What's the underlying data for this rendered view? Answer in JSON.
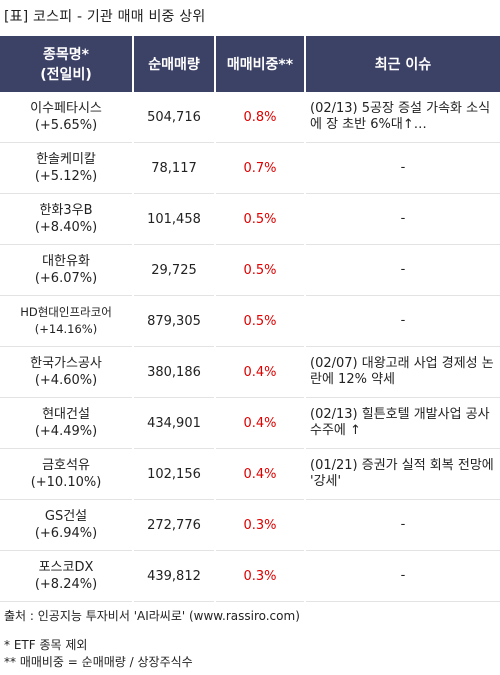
{
  "title": "[표] 코스피 - 기관 매매 비중 상위",
  "columns": {
    "name_line1": "종목명*",
    "name_line2": "(전일비)",
    "volume": "순매매량",
    "ratio": "매매비중**",
    "issue": "최근 이슈"
  },
  "rows": [
    {
      "name": "이수페타시스",
      "change": "(+5.65%)",
      "volume": "504,716",
      "ratio": "0.8%",
      "issue": "(02/13) 5공장 증설 가속화 소식에 장 초반 6%대↑…"
    },
    {
      "name": "한솔케미칼",
      "change": "(+5.12%)",
      "volume": "78,117",
      "ratio": "0.7%",
      "issue": "-"
    },
    {
      "name": "한화3우B",
      "change": "(+8.40%)",
      "volume": "101,458",
      "ratio": "0.5%",
      "issue": "-"
    },
    {
      "name": "대한유화",
      "change": "(+6.07%)",
      "volume": "29,725",
      "ratio": "0.5%",
      "issue": "-"
    },
    {
      "name": "HD현대인프라코어",
      "change": "(+14.16%)",
      "volume": "879,305",
      "ratio": "0.5%",
      "issue": "-"
    },
    {
      "name": "한국가스공사",
      "change": "(+4.60%)",
      "volume": "380,186",
      "ratio": "0.4%",
      "issue": "(02/07) 대왕고래 사업 경제성 논란에 12% 약세"
    },
    {
      "name": "현대건설",
      "change": "(+4.49%)",
      "volume": "434,901",
      "ratio": "0.4%",
      "issue": "(02/13) 힐튼호텔 개발사업 공사 수주에 ↑"
    },
    {
      "name": "금호석유",
      "change": "(+10.10%)",
      "volume": "102,156",
      "ratio": "0.4%",
      "issue": "(01/21) 증권가 실적 회복 전망에 '강세'"
    },
    {
      "name": "GS건설",
      "change": "(+6.94%)",
      "volume": "272,776",
      "ratio": "0.3%",
      "issue": "-"
    },
    {
      "name": "포스코DX",
      "change": "(+8.24%)",
      "volume": "439,812",
      "ratio": "0.3%",
      "issue": "-"
    }
  ],
  "footer": {
    "source": "출처 : 인공지능 투자비서 'AI라씨로' (www.rassiro.com)",
    "note1": "* ETF 종목 제외",
    "note2": "** 매매비중 = 순매매량 / 상장주식수"
  },
  "colors": {
    "header_bg": "#3c4166",
    "header_text": "#ffffff",
    "ratio_text": "#e00000"
  }
}
